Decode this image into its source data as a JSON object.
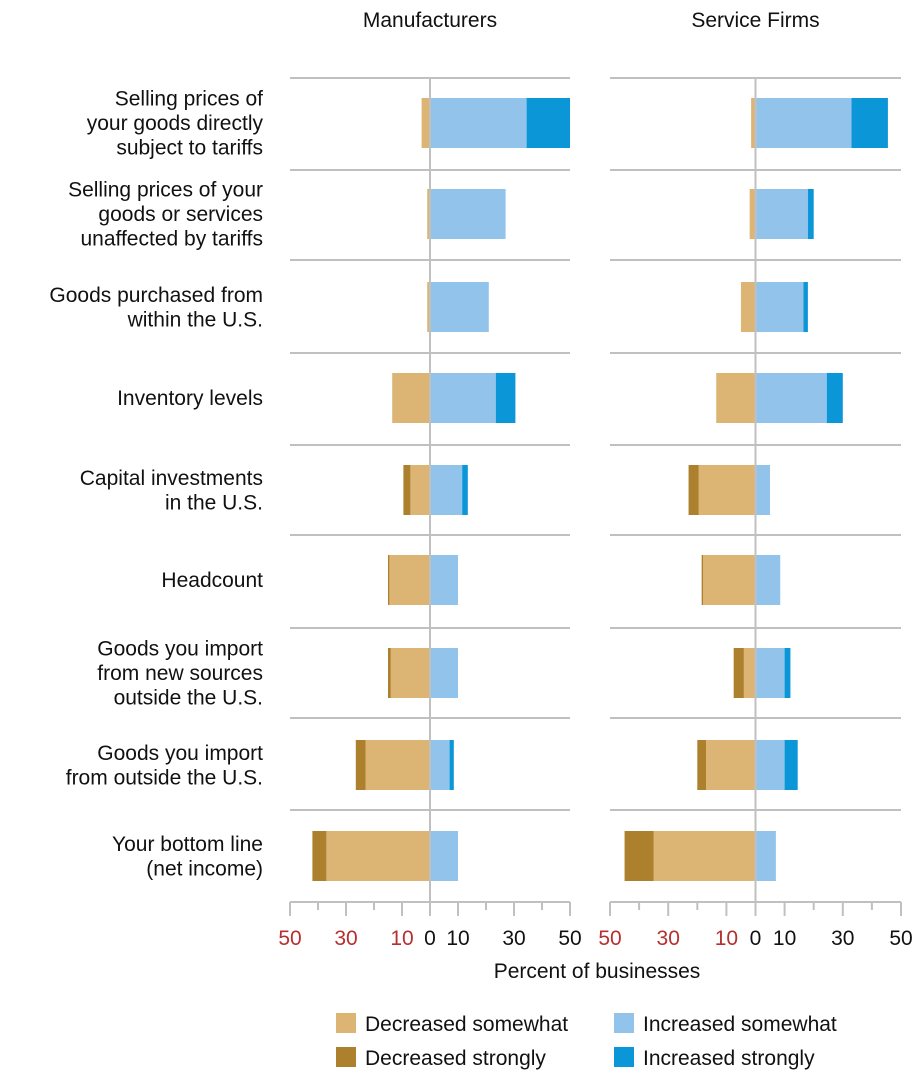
{
  "chart_data": {
    "type": "bar",
    "orientation": "horizontal",
    "stacking": "diverging",
    "xlabel": "Percent of businesses",
    "xlim": [
      -50,
      50
    ],
    "x_ticks": [
      {
        "value": -50,
        "label": "50",
        "negative": true
      },
      {
        "value": -30,
        "label": "30",
        "negative": true
      },
      {
        "value": -10,
        "label": "10",
        "negative": true
      },
      {
        "value": 0,
        "label": "0",
        "negative": false
      },
      {
        "value": 10,
        "label": "10",
        "negative": false
      },
      {
        "value": 30,
        "label": "30",
        "negative": false
      },
      {
        "value": 50,
        "label": "50",
        "negative": false
      }
    ],
    "x_minor_ticks": [
      -40,
      -20,
      20,
      40
    ],
    "categories": [
      [
        "Selling prices of",
        "your goods directly",
        "subject to tariffs"
      ],
      [
        "Selling prices of your",
        "goods or services",
        "unaffected by tariffs"
      ],
      [
        "Goods purchased from",
        "within the U.S."
      ],
      [
        "Inventory levels"
      ],
      [
        "Capital investments",
        "in the U.S."
      ],
      [
        "Headcount"
      ],
      [
        "Goods you import",
        "from new sources",
        "outside the U.S."
      ],
      [
        "Goods you import",
        "from outside the U.S."
      ],
      [
        "Your bottom line",
        "(net income)"
      ]
    ],
    "colors": {
      "decreased_somewhat": "#dcb574",
      "decreased_strongly": "#ad802d",
      "increased_somewhat": "#92c3ea",
      "increased_strongly": "#0b96d8",
      "axis": "#c0c0c0"
    },
    "legend": [
      {
        "key": "decreased_somewhat",
        "label": "Decreased somewhat"
      },
      {
        "key": "increased_somewhat",
        "label": "Increased somewhat"
      },
      {
        "key": "decreased_strongly",
        "label": "Decreased strongly"
      },
      {
        "key": "increased_strongly",
        "label": "Increased strongly"
      }
    ],
    "panels": [
      {
        "title": "Manufacturers",
        "decreased_somewhat": [
          3,
          1,
          1,
          13.5,
          7,
          14.5,
          14,
          23,
          37
        ],
        "decreased_strongly": [
          0,
          0,
          0,
          0,
          2.5,
          0.5,
          1,
          3.5,
          5
        ],
        "increased_somewhat": [
          34.5,
          27,
          21,
          23.5,
          11.5,
          10,
          10,
          7,
          10
        ],
        "increased_strongly": [
          15.5,
          0,
          0,
          7,
          2,
          0,
          0,
          1.5,
          0
        ]
      },
      {
        "title": "Service Firms",
        "decreased_somewhat": [
          1.5,
          2,
          5,
          13.5,
          19.5,
          18,
          4,
          17,
          35
        ],
        "decreased_strongly": [
          0,
          0,
          0,
          0,
          3.5,
          0.5,
          3.5,
          3,
          10
        ],
        "increased_somewhat": [
          33,
          18,
          16.5,
          24.5,
          5,
          8.5,
          10,
          10,
          7
        ],
        "increased_strongly": [
          12.5,
          2,
          1.5,
          5.5,
          0,
          0,
          2,
          4.5,
          0
        ]
      }
    ]
  }
}
